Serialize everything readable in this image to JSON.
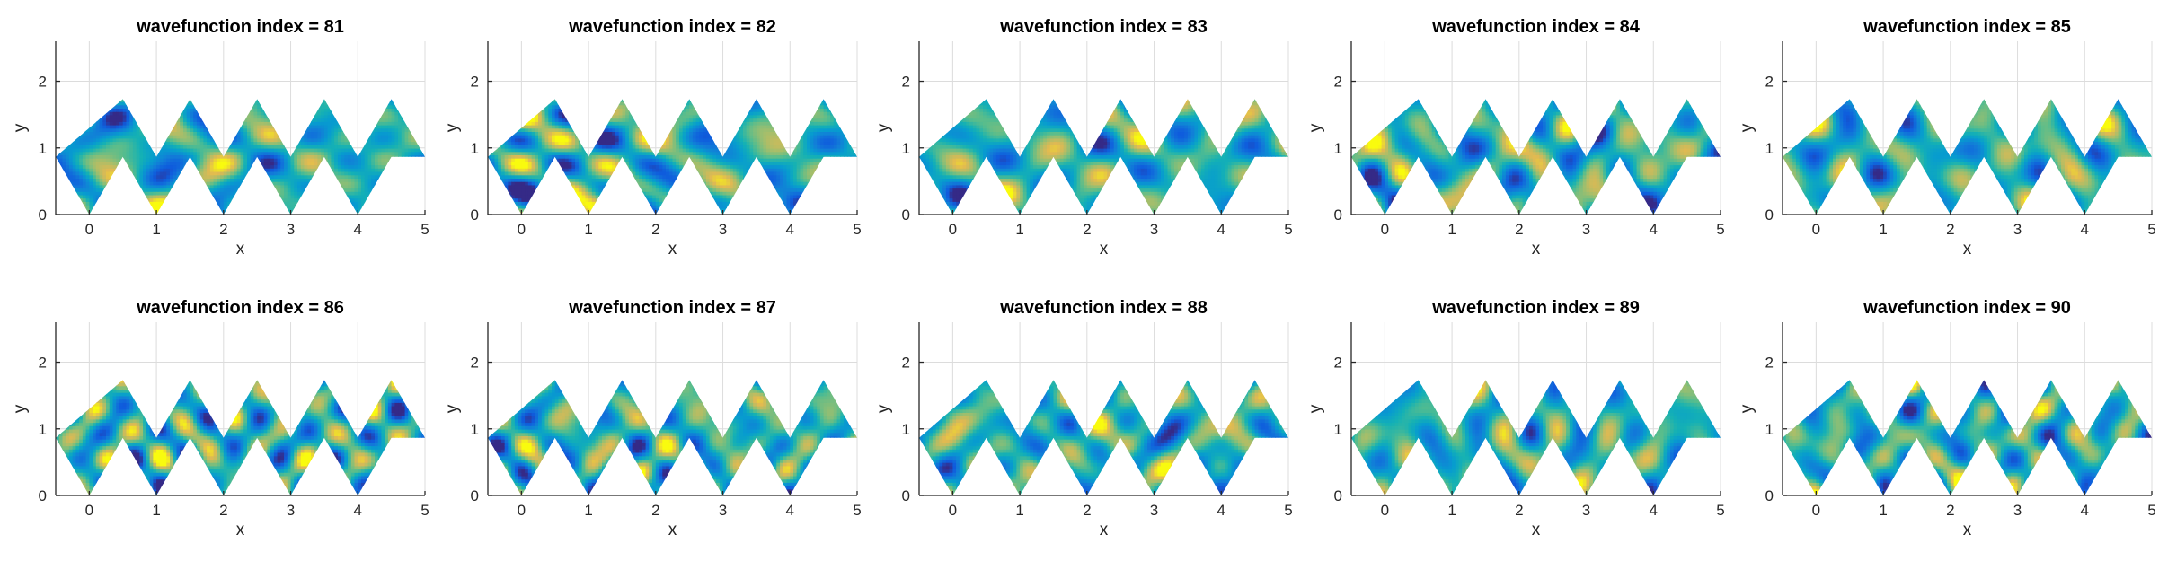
{
  "chart_data": {
    "type": "heatmap",
    "colormap": "parula",
    "grid": true,
    "layout": {
      "rows": 2,
      "cols": 5
    },
    "domain": "row of 5 adjacent equilateral triangles (side 1) with a zig-zag bottom and top, from x=-0.5 to x=5, y=0 to y=2.598",
    "xlim": [
      -0.5,
      5
    ],
    "ylim": [
      0,
      2.6
    ],
    "x_ticks": [
      "0",
      "1",
      "2",
      "3",
      "4",
      "5"
    ],
    "y_ticks": [
      "0",
      "1",
      "2"
    ],
    "xlabel": "x",
    "ylabel": "y",
    "panels": [
      {
        "title": "wavefunction index = 81",
        "index": 81
      },
      {
        "title": "wavefunction index = 82",
        "index": 82
      },
      {
        "title": "wavefunction index = 83",
        "index": 83
      },
      {
        "title": "wavefunction index = 84",
        "index": 84
      },
      {
        "title": "wavefunction index = 85",
        "index": 85
      },
      {
        "title": "wavefunction index = 86",
        "index": 86
      },
      {
        "title": "wavefunction index = 87",
        "index": 87
      },
      {
        "title": "wavefunction index = 88",
        "index": 88
      },
      {
        "title": "wavefunction index = 89",
        "index": 89
      },
      {
        "title": "wavefunction index = 90",
        "index": 90
      }
    ]
  }
}
